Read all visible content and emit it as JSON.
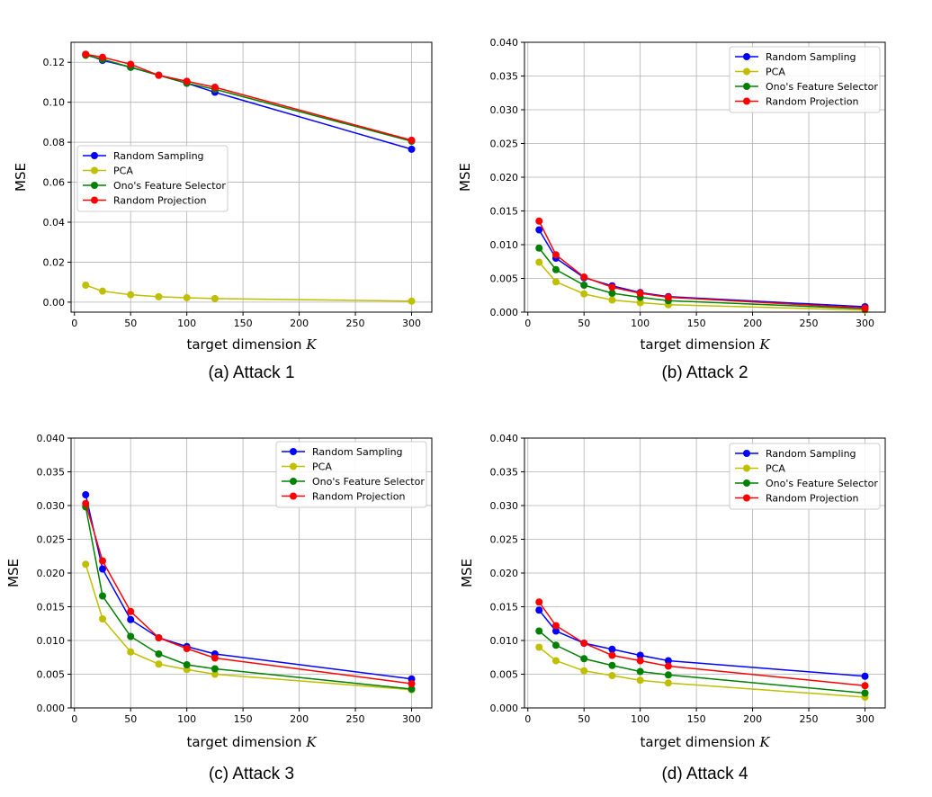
{
  "chart_data": [
    {
      "type": "line",
      "caption": "(a)  Attack 1",
      "xlabel_text": "target dimension ",
      "xlabel_var": "K",
      "ylabel": "MSE",
      "xlim": [
        -3,
        318
      ],
      "ylim": [
        -0.005,
        0.13
      ],
      "xticks": [
        0,
        50,
        100,
        150,
        200,
        250,
        300
      ],
      "xtick_labels": [
        "0",
        "50",
        "100",
        "150",
        "200",
        "250",
        "300"
      ],
      "yticks": [
        0,
        0.02,
        0.04,
        0.06,
        0.08,
        0.1,
        0.12
      ],
      "ytick_labels": [
        "0.00",
        "0.02",
        "0.04",
        "0.06",
        "0.08",
        "0.10",
        "0.12"
      ],
      "grid": true,
      "legend_position": "center-left",
      "x": [
        10,
        25,
        50,
        75,
        100,
        125,
        300
      ],
      "series": [
        {
          "name": "Random Sampling",
          "color": "#0000ff",
          "values": [
            0.124,
            0.121,
            0.1175,
            0.1135,
            0.1095,
            0.105,
            0.0765
          ]
        },
        {
          "name": "PCA",
          "color": "#bfbf00",
          "values": [
            0.0085,
            0.0055,
            0.0037,
            0.0027,
            0.0022,
            0.0018,
            0.0005
          ]
        },
        {
          "name": "Ono's Feature Selector",
          "color": "#008000",
          "values": [
            0.1235,
            0.1215,
            0.1175,
            0.1135,
            0.1095,
            0.1065,
            0.0805
          ]
        },
        {
          "name": "Random Projection",
          "color": "#ff0000",
          "values": [
            0.124,
            0.1225,
            0.119,
            0.1135,
            0.1105,
            0.1075,
            0.081
          ]
        }
      ]
    },
    {
      "type": "line",
      "caption": "(b)  Attack 2",
      "xlabel_text": "target dimension ",
      "xlabel_var": "K",
      "ylabel": "MSE",
      "xlim": [
        -3,
        318
      ],
      "ylim": [
        0,
        0.04
      ],
      "xticks": [
        0,
        50,
        100,
        150,
        200,
        250,
        300
      ],
      "xtick_labels": [
        "0",
        "50",
        "100",
        "150",
        "200",
        "250",
        "300"
      ],
      "yticks": [
        0,
        0.005,
        0.01,
        0.015,
        0.02,
        0.025,
        0.03,
        0.035,
        0.04
      ],
      "ytick_labels": [
        "0.000",
        "0.005",
        "0.010",
        "0.015",
        "0.020",
        "0.025",
        "0.030",
        "0.035",
        "0.040"
      ],
      "grid": true,
      "legend_position": "top-right",
      "x": [
        10,
        25,
        50,
        75,
        100,
        125,
        300
      ],
      "series": [
        {
          "name": "Random Sampling",
          "color": "#0000ff",
          "values": [
            0.0122,
            0.008,
            0.0051,
            0.0039,
            0.0029,
            0.0023,
            0.0008
          ]
        },
        {
          "name": "PCA",
          "color": "#bfbf00",
          "values": [
            0.0074,
            0.0045,
            0.0027,
            0.0018,
            0.0014,
            0.0011,
            0.0003
          ]
        },
        {
          "name": "Ono's Feature Selector",
          "color": "#008000",
          "values": [
            0.0095,
            0.0063,
            0.004,
            0.0028,
            0.0022,
            0.0017,
            0.0005
          ]
        },
        {
          "name": "Random Projection",
          "color": "#ff0000",
          "values": [
            0.0135,
            0.0085,
            0.0052,
            0.0037,
            0.0028,
            0.0022,
            0.0006
          ]
        }
      ]
    },
    {
      "type": "line",
      "caption": "(c)  Attack 3",
      "xlabel_text": "target dimension ",
      "xlabel_var": "K",
      "ylabel": "MSE",
      "xlim": [
        -3,
        318
      ],
      "ylim": [
        0,
        0.04
      ],
      "xticks": [
        0,
        50,
        100,
        150,
        200,
        250,
        300
      ],
      "xtick_labels": [
        "0",
        "50",
        "100",
        "150",
        "200",
        "250",
        "300"
      ],
      "yticks": [
        0,
        0.005,
        0.01,
        0.015,
        0.02,
        0.025,
        0.03,
        0.035,
        0.04
      ],
      "ytick_labels": [
        "0.000",
        "0.005",
        "0.010",
        "0.015",
        "0.020",
        "0.025",
        "0.030",
        "0.035",
        "0.040"
      ],
      "grid": true,
      "legend_position": "top-right",
      "x": [
        10,
        25,
        50,
        75,
        100,
        125,
        300
      ],
      "series": [
        {
          "name": "Random Sampling",
          "color": "#0000ff",
          "values": [
            0.0316,
            0.0206,
            0.0131,
            0.0104,
            0.0091,
            0.008,
            0.0043
          ]
        },
        {
          "name": "PCA",
          "color": "#bfbf00",
          "values": [
            0.0213,
            0.0132,
            0.0083,
            0.0065,
            0.0057,
            0.005,
            0.0027
          ]
        },
        {
          "name": "Ono's Feature Selector",
          "color": "#008000",
          "values": [
            0.0298,
            0.0166,
            0.0106,
            0.008,
            0.0064,
            0.0058,
            0.0028
          ]
        },
        {
          "name": "Random Projection",
          "color": "#ff0000",
          "values": [
            0.0303,
            0.0218,
            0.0143,
            0.0104,
            0.0088,
            0.0074,
            0.0036
          ]
        }
      ]
    },
    {
      "type": "line",
      "caption": "(d)  Attack 4",
      "xlabel_text": "target dimension ",
      "xlabel_var": "K",
      "ylabel": "MSE",
      "xlim": [
        -3,
        318
      ],
      "ylim": [
        0,
        0.04
      ],
      "xticks": [
        0,
        50,
        100,
        150,
        200,
        250,
        300
      ],
      "xtick_labels": [
        "0",
        "50",
        "100",
        "150",
        "200",
        "250",
        "300"
      ],
      "yticks": [
        0,
        0.005,
        0.01,
        0.015,
        0.02,
        0.025,
        0.03,
        0.035,
        0.04
      ],
      "ytick_labels": [
        "0.000",
        "0.005",
        "0.010",
        "0.015",
        "0.020",
        "0.025",
        "0.030",
        "0.035",
        "0.040"
      ],
      "grid": true,
      "legend_position": "top-right",
      "x": [
        10,
        25,
        50,
        75,
        100,
        125,
        300
      ],
      "series": [
        {
          "name": "Random Sampling",
          "color": "#0000ff",
          "values": [
            0.0145,
            0.0114,
            0.0096,
            0.0087,
            0.0078,
            0.007,
            0.0047
          ]
        },
        {
          "name": "PCA",
          "color": "#bfbf00",
          "values": [
            0.009,
            0.007,
            0.0055,
            0.0048,
            0.0041,
            0.0037,
            0.0016
          ]
        },
        {
          "name": "Ono's Feature Selector",
          "color": "#008000",
          "values": [
            0.0114,
            0.0093,
            0.0073,
            0.0063,
            0.0054,
            0.0049,
            0.0022
          ]
        },
        {
          "name": "Random Projection",
          "color": "#ff0000",
          "values": [
            0.0157,
            0.0122,
            0.0096,
            0.0078,
            0.007,
            0.0062,
            0.0033
          ]
        }
      ]
    }
  ]
}
